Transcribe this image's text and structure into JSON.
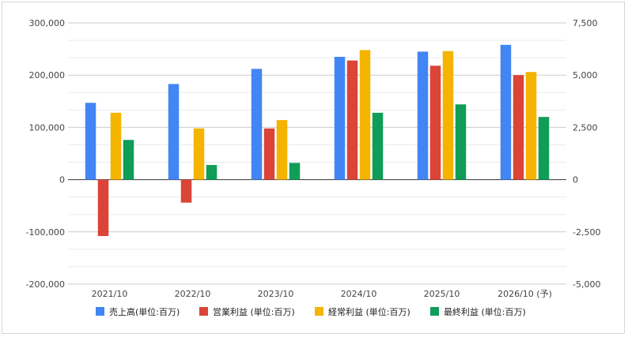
{
  "chart_data": {
    "type": "bar",
    "categories": [
      "2021/10",
      "2022/10",
      "2023/10",
      "2024/10",
      "2025/10",
      "2026/10 (予)"
    ],
    "series": [
      {
        "name": "売上高(単位:百万)",
        "axis": "left",
        "color": "#4285F4",
        "values": [
          147000,
          183000,
          212000,
          235000,
          245000,
          258000
        ]
      },
      {
        "name": "営業利益 (単位:百万)",
        "axis": "right",
        "color": "#DB4437",
        "values": [
          -2700,
          -1100,
          2450,
          5700,
          5450,
          5000
        ]
      },
      {
        "name": "経常利益 (単位:百万)",
        "axis": "right",
        "color": "#F4B400",
        "values": [
          3200,
          2450,
          2850,
          6200,
          6150,
          5150
        ]
      },
      {
        "name": "最終利益 (単位:百万)",
        "axis": "right",
        "color": "#0F9D58",
        "values": [
          1900,
          700,
          800,
          3200,
          3600,
          3000
        ]
      }
    ],
    "y_left": {
      "range": [
        -200000,
        300000
      ],
      "ticks": [
        "300,000",
        "200,000",
        "100,000",
        "0",
        "-100,000",
        "-200,000"
      ]
    },
    "y_right": {
      "range": [
        -5000,
        7500
      ],
      "ticks": [
        "7,500",
        "5,000",
        "2,500",
        "0",
        "-2,500",
        "-5,000"
      ]
    },
    "grid": true,
    "legend": "bottom"
  }
}
